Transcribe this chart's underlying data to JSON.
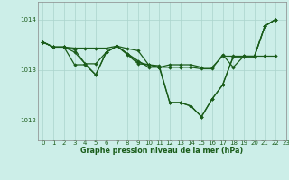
{
  "title": "Graphe pression niveau de la mer (hPa)",
  "bg_color": "#cceee8",
  "plot_bg_color": "#cceee8",
  "line_color": "#1a5c1a",
  "grid_color": "#aad4cc",
  "xlim": [
    -0.5,
    23
  ],
  "ylim": [
    1011.6,
    1014.35
  ],
  "yticks": [
    1012,
    1013,
    1014
  ],
  "xticks": [
    0,
    1,
    2,
    3,
    4,
    5,
    6,
    7,
    8,
    9,
    10,
    11,
    12,
    13,
    14,
    15,
    16,
    17,
    18,
    19,
    20,
    21,
    22,
    23
  ],
  "series": [
    {
      "x": [
        0,
        1,
        2,
        3,
        4,
        5,
        6,
        7,
        8,
        9,
        10,
        11,
        12,
        13,
        14,
        15,
        16,
        17,
        18,
        19,
        20,
        21,
        22
      ],
      "y": [
        1013.55,
        1013.45,
        1013.45,
        1013.43,
        1013.43,
        1013.43,
        1013.43,
        1013.47,
        1013.42,
        1013.38,
        1013.1,
        1013.05,
        1013.05,
        1013.05,
        1013.05,
        1013.02,
        1013.02,
        1013.3,
        1013.05,
        1013.27,
        1013.27,
        1013.27,
        1013.27
      ]
    },
    {
      "x": [
        0,
        1,
        2,
        3,
        4,
        5,
        6,
        7,
        8,
        9,
        10,
        11,
        12,
        13,
        14,
        15,
        16,
        17,
        18,
        19,
        20,
        21,
        22
      ],
      "y": [
        1013.55,
        1013.45,
        1013.45,
        1013.1,
        1013.1,
        1012.9,
        1013.35,
        1013.47,
        1013.32,
        1013.18,
        1013.05,
        1013.05,
        1013.1,
        1013.1,
        1013.1,
        1013.05,
        1013.05,
        1013.27,
        1013.27,
        1013.27,
        1013.27,
        1013.87,
        1014.0
      ]
    },
    {
      "x": [
        0,
        1,
        2,
        3,
        4,
        5,
        6,
        7,
        8,
        9,
        10,
        11,
        12,
        13,
        14,
        15,
        16,
        17,
        18,
        19,
        20,
        21,
        22
      ],
      "y": [
        1013.55,
        1013.45,
        1013.45,
        1013.35,
        1013.12,
        1013.12,
        1013.35,
        1013.47,
        1013.3,
        1013.12,
        1013.1,
        1013.08,
        1012.35,
        1012.35,
        1012.28,
        1012.07,
        1012.42,
        1012.7,
        1013.26,
        1013.26,
        1013.26,
        1013.87,
        1014.0
      ]
    },
    {
      "x": [
        0,
        1,
        2,
        3,
        4,
        5,
        6,
        7,
        8,
        9,
        10,
        11,
        12,
        13,
        14,
        15,
        16,
        17,
        18,
        19,
        20,
        21,
        22
      ],
      "y": [
        1013.55,
        1013.45,
        1013.45,
        1013.4,
        1013.12,
        1012.9,
        1013.35,
        1013.47,
        1013.32,
        1013.15,
        1013.1,
        1013.05,
        1012.35,
        1012.35,
        1012.28,
        1012.07,
        1012.42,
        1012.7,
        1013.26,
        1013.26,
        1013.26,
        1013.87,
        1014.0
      ]
    }
  ]
}
